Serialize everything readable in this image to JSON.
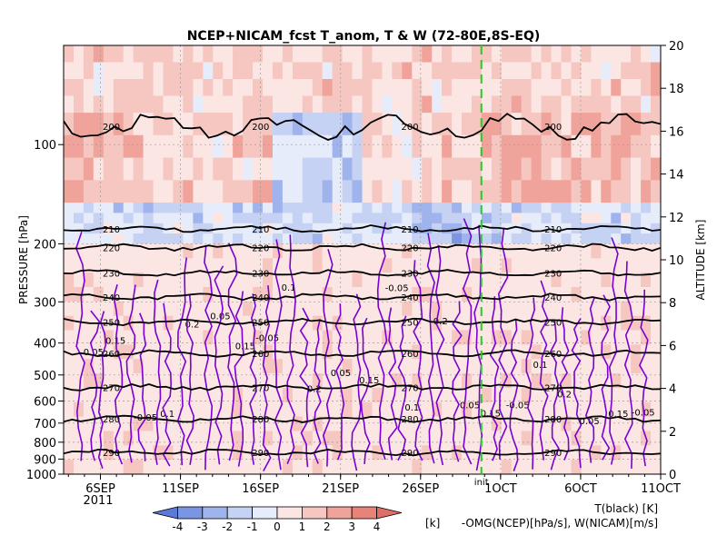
{
  "chart_data": {
    "type": "heatmap",
    "title": "NCEP+NICAM_fcst T_anom, T & W  (72-80E,8S-EQ)",
    "left_axis_label": "PRESSURE [hPa]",
    "right_axis_label": "ALTITUDE [km]",
    "pressure_ticks": [
      "100",
      "200",
      "300",
      "400",
      "500",
      "600",
      "700",
      "800",
      "900",
      "1000"
    ],
    "pressure_values": [
      100,
      200,
      300,
      400,
      500,
      600,
      700,
      800,
      900,
      1000
    ],
    "pressure_range": [
      1000,
      50
    ],
    "altitude_ticks": [
      "0",
      "2",
      "4",
      "6",
      "8",
      "10",
      "12",
      "14",
      "16",
      "18",
      "20"
    ],
    "altitude_values": [
      0,
      2,
      4,
      6,
      8,
      10,
      12,
      14,
      16,
      18,
      20
    ],
    "x_ticks": [
      "6SEP",
      "11SEP",
      "16SEP",
      "21SEP",
      "26SEP",
      "1OCT",
      "6OCT",
      "11OCT"
    ],
    "x_tick_days": [
      6,
      11,
      16,
      21,
      26,
      31,
      36,
      41
    ],
    "x_range_days": [
      3.7,
      41
    ],
    "year_label": "2011",
    "init_label": "init",
    "init_day": 29.8,
    "grid": true,
    "colorbar": {
      "ticks": [
        "-4",
        "-3",
        "-2",
        "-1",
        "0",
        "1",
        "2",
        "3",
        "4"
      ],
      "unit": "[k]",
      "colors": [
        "#5b7ad8",
        "#7a96e3",
        "#9fb3ec",
        "#c5d2f4",
        "#e6ecfa",
        "#fbe6e3",
        "#f6c6c0",
        "#f0a39a",
        "#e8837a",
        "#e06e68"
      ]
    },
    "legend": {
      "temperature": "T(black) [K]",
      "vertical_motion": "-OMG(NCEP)[hPa/s], W(NICAM)[m/s]"
    },
    "temperature_contours": [
      {
        "label": "200",
        "pressure": 88
      },
      {
        "label": "210",
        "pressure": 180
      },
      {
        "label": "220",
        "pressure": 205
      },
      {
        "label": "230",
        "pressure": 245
      },
      {
        "label": "240",
        "pressure": 290
      },
      {
        "label": "250",
        "pressure": 345
      },
      {
        "label": "260",
        "pressure": 430
      },
      {
        "label": "270",
        "pressure": 545
      },
      {
        "label": "280",
        "pressure": 680
      },
      {
        "label": "290",
        "pressure": 860
      }
    ],
    "anomaly_bands": [
      {
        "p_top": 50,
        "p_bot": 80,
        "value": 1
      },
      {
        "p_top": 80,
        "p_bot": 150,
        "value": 1
      },
      {
        "p_top": 150,
        "p_bot": 200,
        "value": -1
      },
      {
        "p_top": 200,
        "p_bot": 1000,
        "value": 0.5
      }
    ],
    "omega_labels": [
      "0.05",
      "0.1",
      "0.15",
      "0.2",
      "-0.05"
    ],
    "omega_levels": [
      -0.05,
      0.05,
      0.1,
      0.15,
      0.2
    ]
  }
}
